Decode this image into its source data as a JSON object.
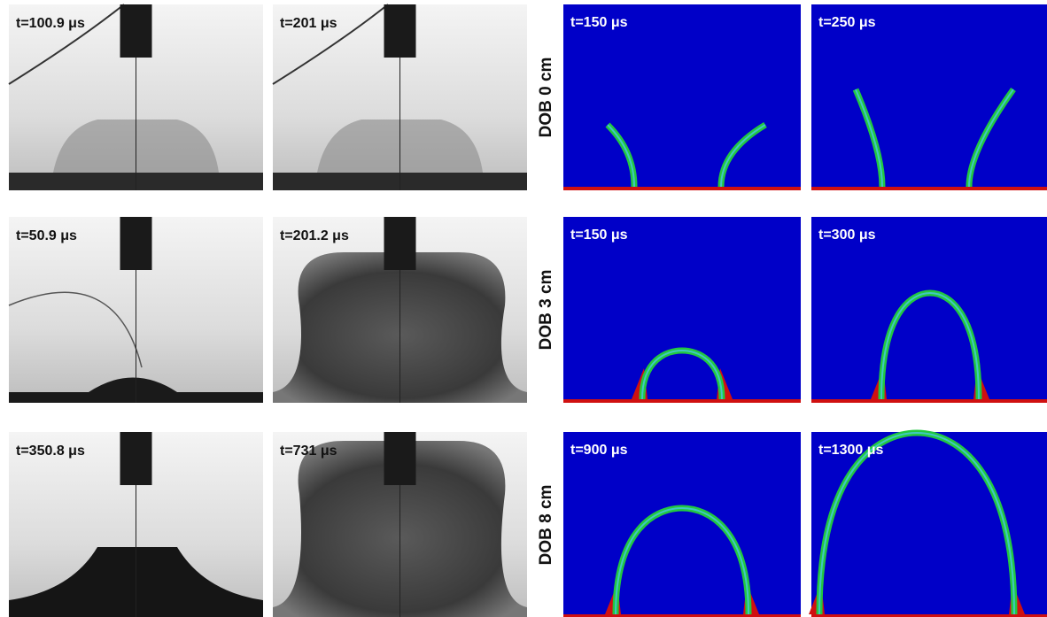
{
  "rows": [
    {
      "label": "DOB 0 cm",
      "experiment": [
        "t=100.9 μs",
        "t=201 μs"
      ],
      "simulation": [
        "t=150 μs",
        "t=250 μs"
      ]
    },
    {
      "label": "DOB 3 cm",
      "experiment": [
        "t=50.9 μs",
        "t=201.2 μs"
      ],
      "simulation": [
        "t=150 μs",
        "t=300 μs"
      ]
    },
    {
      "label": "DOB 8 cm",
      "experiment": [
        "t=350.8 μs",
        "t=731 μs"
      ],
      "simulation": [
        "t=900 μs",
        "t=1300 μs"
      ]
    }
  ]
}
